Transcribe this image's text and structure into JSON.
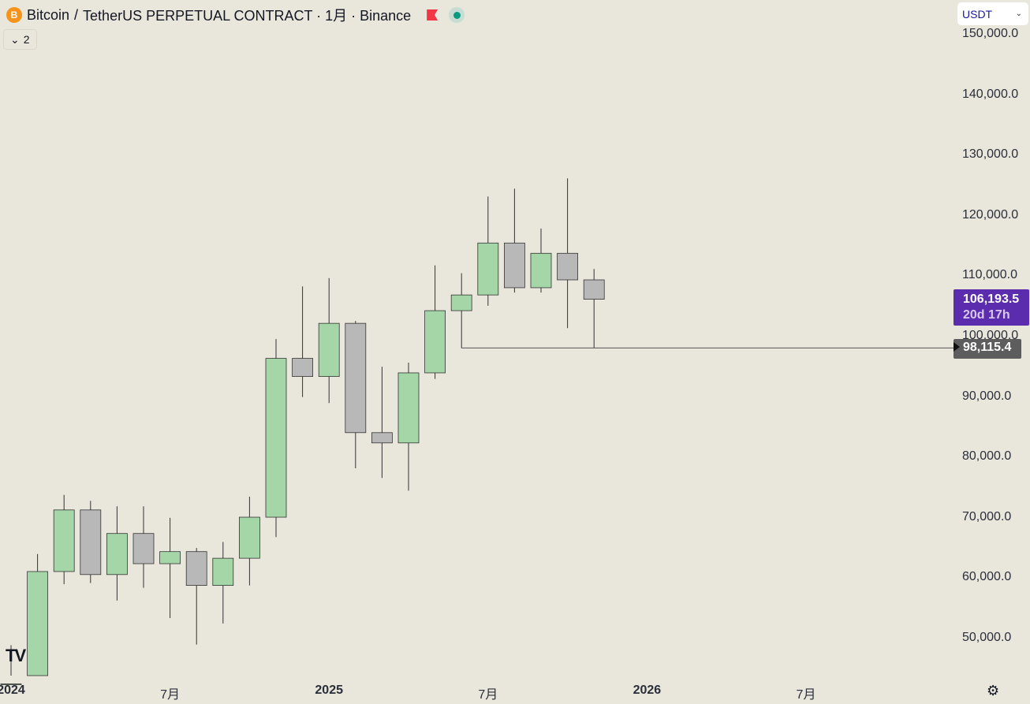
{
  "header": {
    "symbol": "Bitcoin",
    "separator": "/",
    "title": "TetherUS PERPETUAL CONTRACT · 1月 · Binance",
    "coin_icon": "B",
    "indicators_count": "2"
  },
  "currency": {
    "selected": "USDT"
  },
  "y_axis": {
    "labels": [
      "150,000.0",
      "140,000.0",
      "130,000.0",
      "120,000.0",
      "110,000.0",
      "100,000.0",
      "90,000.0",
      "80,000.0",
      "70,000.0",
      "60,000.0",
      "50,000.0"
    ]
  },
  "x_axis": {
    "labels": [
      {
        "text": "2024",
        "month": 0,
        "bold": true
      },
      {
        "text": "7月",
        "month": 6,
        "bold": false
      },
      {
        "text": "2025",
        "month": 12,
        "bold": true
      },
      {
        "text": "7月",
        "month": 18,
        "bold": false
      },
      {
        "text": "2026",
        "month": 24,
        "bold": true
      },
      {
        "text": "7月",
        "month": 30,
        "bold": false
      }
    ]
  },
  "last_price": {
    "value": "106,193.5",
    "countdown": "20d 17h"
  },
  "horizontal_line": {
    "value": 98115.4,
    "label": "98,115.4",
    "start_month": 17
  },
  "colors": {
    "up": "#a5d6a7",
    "down": "#b8b8b8",
    "border": "#333333",
    "background": "#e9e6dc",
    "price_label": "#5b2dae"
  },
  "chart_data": {
    "type": "candlestick",
    "ylim": [
      40000,
      155000
    ],
    "candles": [
      {
        "month": 0,
        "o": 42300,
        "h": 48900,
        "l": 38600,
        "c": 42500
      },
      {
        "month": 1,
        "o": 43100,
        "h": 64000,
        "l": 41800,
        "c": 61100
      },
      {
        "month": 2,
        "o": 61100,
        "h": 73800,
        "l": 59000,
        "c": 71300
      },
      {
        "month": 3,
        "o": 71300,
        "h": 72800,
        "l": 59200,
        "c": 60600
      },
      {
        "month": 4,
        "o": 60600,
        "h": 71900,
        "l": 56300,
        "c": 67400
      },
      {
        "month": 5,
        "o": 67400,
        "h": 71900,
        "l": 58400,
        "c": 62400
      },
      {
        "month": 6,
        "o": 62400,
        "h": 70000,
        "l": 53400,
        "c": 64400
      },
      {
        "month": 7,
        "o": 64400,
        "h": 65000,
        "l": 49000,
        "c": 58800
      },
      {
        "month": 8,
        "o": 58800,
        "h": 66000,
        "l": 52500,
        "c": 63300
      },
      {
        "month": 9,
        "o": 63300,
        "h": 73500,
        "l": 58800,
        "c": 70100
      },
      {
        "month": 10,
        "o": 70100,
        "h": 99600,
        "l": 66800,
        "c": 96400
      },
      {
        "month": 11,
        "o": 96400,
        "h": 108300,
        "l": 90000,
        "c": 93400
      },
      {
        "month": 12,
        "o": 93400,
        "h": 109700,
        "l": 89000,
        "c": 102200
      },
      {
        "month": 13,
        "o": 102200,
        "h": 102600,
        "l": 78200,
        "c": 84100
      },
      {
        "month": 14,
        "o": 84100,
        "h": 95000,
        "l": 76600,
        "c": 82400
      },
      {
        "month": 15,
        "o": 82400,
        "h": 95700,
        "l": 74500,
        "c": 94000
      },
      {
        "month": 16,
        "o": 94000,
        "h": 111800,
        "l": 93000,
        "c": 104300
      },
      {
        "month": 17,
        "o": 104300,
        "h": 110500,
        "l": 98100,
        "c": 106900
      },
      {
        "month": 18,
        "o": 106900,
        "h": 123200,
        "l": 105100,
        "c": 115500
      },
      {
        "month": 19,
        "o": 115500,
        "h": 124500,
        "l": 107300,
        "c": 108100
      },
      {
        "month": 20,
        "o": 108100,
        "h": 117900,
        "l": 107300,
        "c": 113800
      },
      {
        "month": 21,
        "o": 113800,
        "h": 126200,
        "l": 101400,
        "c": 109400
      },
      {
        "month": 22,
        "o": 109400,
        "h": 111200,
        "l": 98100,
        "c": 106193.5
      }
    ]
  }
}
